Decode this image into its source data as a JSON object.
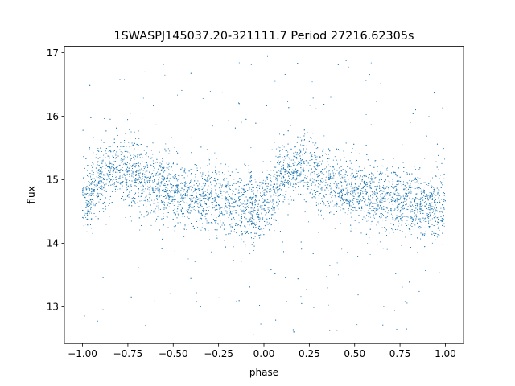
{
  "chart_data": {
    "type": "scatter",
    "title": "1SWASPJ145037.20-321111.7 Period 27216.62305s",
    "xlabel": "phase",
    "ylabel": "flux",
    "xlim": [
      -1.1,
      1.1
    ],
    "ylim": [
      12.42,
      17.1
    ],
    "x_ticks": [
      -1.0,
      -0.75,
      -0.5,
      -0.25,
      0.0,
      0.25,
      0.5,
      0.75,
      1.0
    ],
    "x_tick_labels": [
      "−1.00",
      "−0.75",
      "−0.50",
      "−0.25",
      "0.00",
      "0.25",
      "0.50",
      "0.75",
      "1.00"
    ],
    "y_ticks": [
      13,
      14,
      15,
      16,
      17
    ],
    "y_tick_labels": [
      "13",
      "14",
      "15",
      "16",
      "17"
    ],
    "grid": false,
    "marker_color": "#1f77b4",
    "phase_range": [
      -1.0,
      1.0
    ],
    "profile": {
      "phase": [
        0.0,
        0.05,
        0.1,
        0.15,
        0.2,
        0.25,
        0.3,
        0.35,
        0.4,
        0.45,
        0.5,
        0.55,
        0.6,
        0.65,
        0.7,
        0.75,
        0.8,
        0.85,
        0.9,
        0.95,
        1.0
      ],
      "median_flux": [
        14.62,
        14.78,
        15.05,
        15.15,
        15.2,
        15.15,
        15.05,
        14.98,
        14.9,
        14.85,
        14.8,
        14.75,
        14.72,
        14.7,
        14.67,
        14.65,
        14.63,
        14.6,
        14.58,
        14.57,
        14.6
      ]
    }
  }
}
